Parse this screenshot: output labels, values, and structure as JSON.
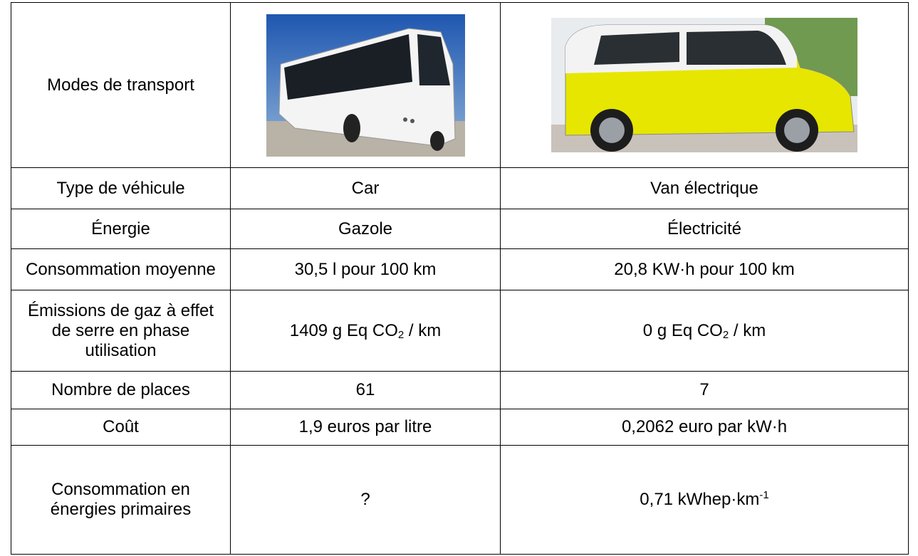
{
  "table": {
    "header": [
      "Modes de transport"
    ],
    "rows": [
      [
        "Type de véhicule",
        "Car",
        "Van électrique"
      ],
      [
        "Énergie",
        "Gazole",
        "Électricité"
      ],
      [
        "Consommation moyenne",
        "30,5 l pour 100 km",
        "20,8 KW·h pour 100 km"
      ],
      [
        "Émissions de gaz à effet de serre en phase utilisation",
        {
          "text": "1409 g Eq CO",
          "sub": "2",
          "after": " / km"
        },
        {
          "text": "0 g Eq CO",
          "sub": "2",
          "after": " / km"
        }
      ],
      [
        "Nombre de places",
        "61",
        "7"
      ],
      [
        "Coût",
        "1,9 euros par litre",
        "0,2062 euro par kW·h"
      ],
      [
        "Consommation en énergies primaires",
        "?",
        {
          "text": "0,71 kWhep·km",
          "sup": "-1"
        }
      ]
    ]
  }
}
